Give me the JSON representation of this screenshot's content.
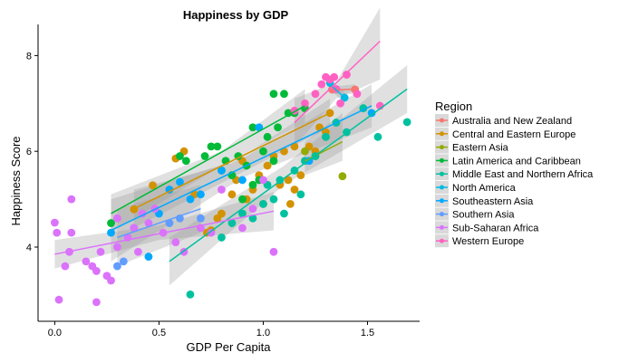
{
  "chart_data": {
    "type": "scatter",
    "title": "Happiness by GDP",
    "xlabel": "GDP Per Capita",
    "ylabel": "Happiness Score",
    "xlim": [
      -0.08,
      1.75
    ],
    "ylim": [
      2.45,
      8.65
    ],
    "xticks": [
      0.0,
      0.5,
      1.0,
      1.5
    ],
    "xtick_labels": [
      "0.0",
      "0.5",
      "1.0",
      "1.5"
    ],
    "yticks": [
      4,
      6,
      8
    ],
    "ytick_labels": [
      "4",
      "6",
      "8"
    ],
    "grid": false,
    "legend": {
      "title": "Region",
      "placement": "right"
    },
    "series": [
      {
        "name": "Australia and New Zealand",
        "color": "#F8766D",
        "points": [
          [
            1.33,
            7.29
          ],
          [
            1.44,
            7.29
          ]
        ],
        "fit": [
          [
            1.33,
            7.28
          ],
          [
            1.44,
            7.3
          ]
        ],
        "band": [
          [
            1.33,
            7.2,
            7.35
          ],
          [
            1.44,
            7.2,
            7.4
          ]
        ]
      },
      {
        "name": "Central and Eastern Europe",
        "color": "#D39200",
        "points": [
          [
            0.38,
            4.79
          ],
          [
            0.47,
            5.29
          ],
          [
            0.55,
            5.2
          ],
          [
            0.58,
            5.85
          ],
          [
            0.62,
            6.0
          ],
          [
            0.67,
            5.1
          ],
          [
            0.73,
            4.3
          ],
          [
            0.75,
            4.35
          ],
          [
            0.78,
            4.6
          ],
          [
            0.8,
            4.7
          ],
          [
            0.85,
            5.1
          ],
          [
            0.87,
            5.4
          ],
          [
            0.9,
            5.8
          ],
          [
            0.92,
            5.0
          ],
          [
            0.95,
            5.2
          ],
          [
            0.98,
            5.5
          ],
          [
            1.0,
            4.9
          ],
          [
            1.02,
            5.7
          ],
          [
            1.05,
            5.9
          ],
          [
            1.08,
            5.3
          ],
          [
            1.1,
            6.0
          ],
          [
            1.12,
            5.4
          ],
          [
            1.13,
            4.9
          ],
          [
            1.15,
            5.2
          ],
          [
            1.15,
            6.1
          ],
          [
            1.18,
            5.5
          ],
          [
            1.2,
            5.8
          ],
          [
            1.22,
            6.1
          ],
          [
            1.25,
            6.0
          ],
          [
            1.27,
            6.5
          ],
          [
            1.3,
            6.4
          ],
          [
            1.32,
            6.8
          ]
        ],
        "fit": [
          [
            0.38,
            4.8
          ],
          [
            1.32,
            6.8
          ]
        ],
        "band": [
          [
            0.38,
            4.4,
            5.2
          ],
          [
            0.85,
            5.45,
            5.75
          ],
          [
            1.32,
            6.5,
            7.1
          ]
        ]
      },
      {
        "name": "Eastern Asia",
        "color": "#93AA00",
        "points": [
          [
            1.2,
            6.0
          ],
          [
            1.25,
            5.9
          ],
          [
            1.3,
            6.3
          ],
          [
            1.38,
            5.48
          ]
        ],
        "fit": [
          [
            1.2,
            5.8
          ],
          [
            1.38,
            6.2
          ]
        ],
        "band": [
          [
            1.2,
            5.5,
            6.2
          ],
          [
            1.38,
            5.8,
            6.8
          ]
        ]
      },
      {
        "name": "Latin America and Caribbean",
        "color": "#00BA38",
        "points": [
          [
            0.27,
            4.5
          ],
          [
            0.6,
            5.9
          ],
          [
            0.63,
            5.8
          ],
          [
            0.72,
            5.9
          ],
          [
            0.75,
            6.1
          ],
          [
            0.78,
            6.1
          ],
          [
            0.8,
            5.6
          ],
          [
            0.82,
            5.8
          ],
          [
            0.85,
            5.5
          ],
          [
            0.88,
            5.9
          ],
          [
            0.92,
            5.7
          ],
          [
            0.95,
            6.5
          ],
          [
            1.0,
            6.0
          ],
          [
            1.02,
            6.3
          ],
          [
            1.05,
            7.2
          ],
          [
            1.07,
            6.5
          ],
          [
            1.1,
            7.2
          ],
          [
            1.12,
            6.8
          ],
          [
            1.15,
            6.8
          ],
          [
            1.2,
            6.9
          ],
          [
            1.05,
            5.8
          ],
          [
            0.98,
            5.4
          ],
          [
            0.9,
            5.0
          ],
          [
            0.95,
            5.3
          ]
        ],
        "fit": [
          [
            0.27,
            4.7
          ],
          [
            1.2,
            6.95
          ]
        ],
        "band": [
          [
            0.27,
            4.3,
            5.1
          ],
          [
            0.8,
            5.7,
            6.0
          ],
          [
            1.2,
            6.6,
            7.3
          ]
        ]
      },
      {
        "name": "Middle East and Northern Africa",
        "color": "#00C19F",
        "points": [
          [
            0.65,
            3.01
          ],
          [
            0.8,
            4.2
          ],
          [
            0.85,
            4.5
          ],
          [
            0.9,
            4.7
          ],
          [
            0.95,
            4.6
          ],
          [
            1.0,
            4.9
          ],
          [
            1.02,
            5.3
          ],
          [
            1.05,
            5.0
          ],
          [
            1.08,
            5.4
          ],
          [
            1.1,
            4.7
          ],
          [
            1.15,
            5.6
          ],
          [
            1.18,
            5.1
          ],
          [
            1.2,
            5.8
          ],
          [
            1.25,
            5.9
          ],
          [
            1.3,
            6.3
          ],
          [
            1.35,
            6.6
          ],
          [
            1.4,
            6.4
          ],
          [
            1.48,
            6.9
          ],
          [
            1.55,
            6.3
          ],
          [
            1.69,
            6.61
          ]
        ],
        "fit": [
          [
            0.55,
            3.7
          ],
          [
            1.69,
            7.3
          ]
        ],
        "band": [
          [
            0.55,
            3.2,
            4.2
          ],
          [
            1.1,
            5.3,
            5.7
          ],
          [
            1.69,
            6.8,
            7.8
          ]
        ]
      },
      {
        "name": "North America",
        "color": "#00B9E3",
        "points": [
          [
            1.32,
            7.43
          ],
          [
            1.39,
            7.12
          ]
        ],
        "fit": [
          [
            1.32,
            7.4
          ],
          [
            1.39,
            7.12
          ]
        ],
        "band": [
          [
            1.32,
            7.3,
            7.5
          ],
          [
            1.39,
            7.0,
            7.25
          ]
        ]
      },
      {
        "name": "Southeastern Asia",
        "color": "#00A9FF",
        "points": [
          [
            0.27,
            4.3
          ],
          [
            0.45,
            3.8
          ],
          [
            0.5,
            4.7
          ],
          [
            0.6,
            5.36
          ],
          [
            0.65,
            5.0
          ],
          [
            0.7,
            5.1
          ],
          [
            0.8,
            5.6
          ],
          [
            0.98,
            6.5
          ],
          [
            1.22,
            5.8
          ],
          [
            1.52,
            6.8
          ],
          [
            0.55,
            5.2
          ],
          [
            0.9,
            5.4
          ]
        ],
        "fit": [
          [
            0.27,
            4.35
          ],
          [
            1.52,
            6.95
          ]
        ],
        "band": [
          [
            0.27,
            3.7,
            5.0
          ],
          [
            0.9,
            5.45,
            5.85
          ],
          [
            1.52,
            6.5,
            7.4
          ]
        ]
      },
      {
        "name": "Southern Asia",
        "color": "#619CFF",
        "points": [
          [
            0.3,
            3.6
          ],
          [
            0.33,
            3.7
          ],
          [
            0.55,
            4.5
          ],
          [
            0.6,
            4.6
          ],
          [
            0.7,
            4.6
          ],
          [
            0.38,
            4.4
          ]
        ],
        "fit": [
          [
            0.3,
            4.2
          ],
          [
            0.7,
            4.8
          ]
        ],
        "band": [
          [
            0.3,
            3.6,
            4.8
          ],
          [
            0.7,
            4.3,
            5.3
          ]
        ]
      },
      {
        "name": "Sub-Saharan Africa",
        "color": "#DB72FB",
        "points": [
          [
            0.0,
            4.51
          ],
          [
            0.01,
            4.3
          ],
          [
            0.02,
            2.9
          ],
          [
            0.05,
            3.6
          ],
          [
            0.07,
            3.9
          ],
          [
            0.08,
            4.3
          ],
          [
            0.08,
            5.0
          ],
          [
            0.15,
            3.7
          ],
          [
            0.18,
            3.6
          ],
          [
            0.2,
            2.85
          ],
          [
            0.2,
            3.5
          ],
          [
            0.22,
            3.9
          ],
          [
            0.25,
            3.4
          ],
          [
            0.27,
            3.3
          ],
          [
            0.3,
            4.0
          ],
          [
            0.3,
            4.6
          ],
          [
            0.35,
            4.2
          ],
          [
            0.38,
            4.4
          ],
          [
            0.4,
            3.9
          ],
          [
            0.42,
            4.7
          ],
          [
            0.45,
            4.5
          ],
          [
            0.48,
            4.8
          ],
          [
            0.52,
            4.3
          ],
          [
            0.58,
            4.1
          ],
          [
            0.62,
            3.9
          ],
          [
            0.7,
            4.4
          ],
          [
            0.75,
            4.3
          ],
          [
            0.8,
            5.2
          ],
          [
            0.9,
            4.4
          ],
          [
            0.95,
            4.8
          ],
          [
            1.05,
            3.9
          ],
          [
            1.0,
            5.4
          ]
        ],
        "fit": [
          [
            0.0,
            3.85
          ],
          [
            1.05,
            4.75
          ]
        ],
        "band": [
          [
            0.0,
            3.55,
            4.15
          ],
          [
            0.5,
            4.15,
            4.45
          ],
          [
            1.05,
            4.35,
            5.15
          ]
        ]
      },
      {
        "name": "Western Europe",
        "color": "#FF61C3",
        "points": [
          [
            1.15,
            6.85
          ],
          [
            1.2,
            7.0
          ],
          [
            1.25,
            7.2
          ],
          [
            1.28,
            7.4
          ],
          [
            1.3,
            7.55
          ],
          [
            1.32,
            7.5
          ],
          [
            1.34,
            7.55
          ],
          [
            1.35,
            7.3
          ],
          [
            1.37,
            7.0
          ],
          [
            1.4,
            7.6
          ],
          [
            1.45,
            7.2
          ],
          [
            1.56,
            6.95
          ]
        ],
        "fit": [
          [
            1.15,
            6.6
          ],
          [
            1.56,
            8.3
          ]
        ],
        "band": [
          [
            1.15,
            6.1,
            7.1
          ],
          [
            1.35,
            7.1,
            7.45
          ],
          [
            1.56,
            7.5,
            9.0
          ]
        ]
      }
    ]
  }
}
